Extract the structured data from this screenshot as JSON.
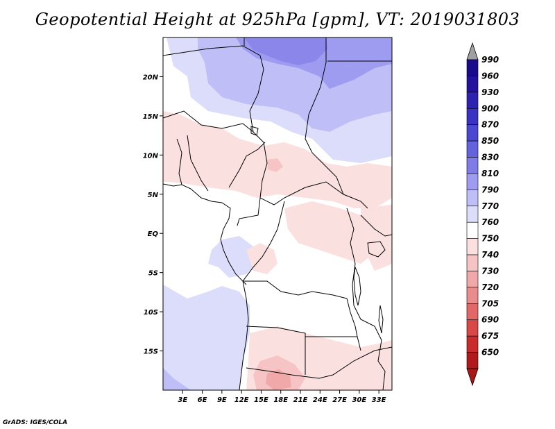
{
  "title": "Geopotential Height at 925hPa [gpm], VT: 2019031803",
  "credit": "GrADS: IGES/COLA",
  "map": {
    "lon_range": [
      0,
      35
    ],
    "lat_range": [
      -20,
      25
    ],
    "lat_ticks": [
      {
        "value": 20,
        "label": "20N"
      },
      {
        "value": 15,
        "label": "15N"
      },
      {
        "value": 10,
        "label": "10N"
      },
      {
        "value": 5,
        "label": "5N"
      },
      {
        "value": 0,
        "label": "EQ"
      },
      {
        "value": -5,
        "label": "5S"
      },
      {
        "value": -10,
        "label": "10S"
      },
      {
        "value": -15,
        "label": "15S"
      }
    ],
    "lon_ticks": [
      {
        "value": 3,
        "label": "3E"
      },
      {
        "value": 6,
        "label": "6E"
      },
      {
        "value": 9,
        "label": "9E"
      },
      {
        "value": 12,
        "label": "12E"
      },
      {
        "value": 15,
        "label": "15E"
      },
      {
        "value": 18,
        "label": "18E"
      },
      {
        "value": 21,
        "label": "21E"
      },
      {
        "value": 24,
        "label": "24E"
      },
      {
        "value": 27,
        "label": "27E"
      },
      {
        "value": 30,
        "label": "30E"
      },
      {
        "value": 33,
        "label": "33E"
      }
    ]
  },
  "colorbar": {
    "levels": [
      "990",
      "960",
      "930",
      "900",
      "870",
      "850",
      "830",
      "810",
      "790",
      "770",
      "760",
      "750",
      "740",
      "730",
      "720",
      "705",
      "690",
      "675",
      "650"
    ],
    "colors": [
      "#1a0a8c",
      "#24129e",
      "#2e22b0",
      "#3a32c2",
      "#4a48d0",
      "#6462dc",
      "#7f7ce6",
      "#9e9cf0",
      "#bfbef6",
      "#dcdcfb",
      "#ffffff",
      "#fbe0e0",
      "#f6c4c4",
      "#f0a8a8",
      "#ea8c8c",
      "#e26868",
      "#d84848",
      "#c82c2c",
      "#b01a1a"
    ],
    "top_arrow_color": "#a0a0a0",
    "bottom_arrow_color": "#a81818"
  }
}
